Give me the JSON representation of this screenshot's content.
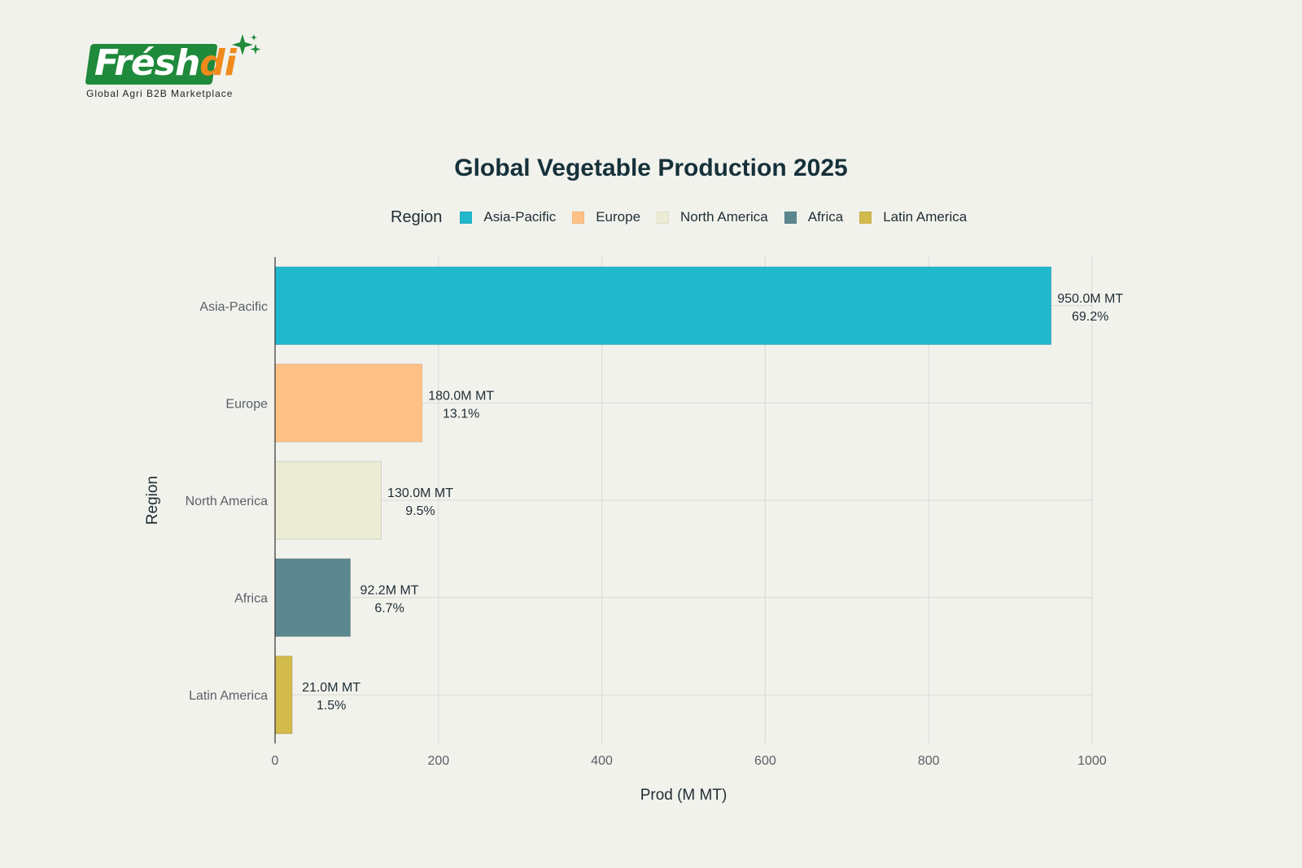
{
  "brand": {
    "logo_text_main": "Frésh",
    "logo_text_accent": "di",
    "tagline": "Global Agri B2B Marketplace"
  },
  "colors": {
    "background": "#f2f2ed",
    "grid": "#d9d9d4",
    "axis": "#333333",
    "logo_green": "#1f8a3b",
    "logo_orange": "#f08a1c"
  },
  "chart_data": {
    "type": "bar",
    "orientation": "horizontal",
    "title": "Global Vegetable Production 2025",
    "xlabel": "Prod (M MT)",
    "ylabel": "Region",
    "xlim": [
      0,
      1000
    ],
    "xticks": [
      0,
      200,
      400,
      600,
      800,
      1000
    ],
    "grid": true,
    "legend": {
      "title": "Region",
      "placement": "top-center"
    },
    "categories": [
      "Asia-Pacific",
      "Europe",
      "North America",
      "Africa",
      "Latin America"
    ],
    "values": [
      950.0,
      180.0,
      130.0,
      92.2,
      21.0
    ],
    "value_labels": [
      "950.0M MT",
      "180.0M MT",
      "130.0M MT",
      "92.2M MT",
      "21.0M MT"
    ],
    "share_labels": [
      "69.2%",
      "13.1%",
      "9.5%",
      "6.7%",
      "1.5%"
    ],
    "colors": [
      "#21b8cd",
      "#ffc185",
      "#ecebd5",
      "#5d878f",
      "#d2ba4c"
    ]
  }
}
